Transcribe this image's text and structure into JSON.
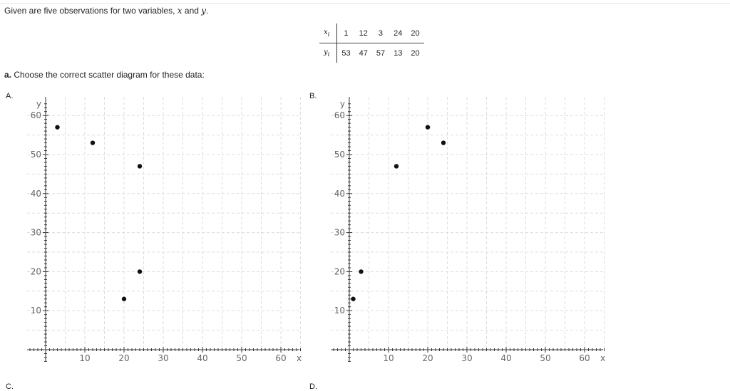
{
  "intro": {
    "prefix": "Given are five observations for two variables, ",
    "var_x": "x",
    "connector": " and ",
    "var_y": "y",
    "suffix": "."
  },
  "table": {
    "x_label": "x",
    "x_sub": "i",
    "y_label": "y",
    "y_sub": "i",
    "x_values": [
      "1",
      "12",
      "3",
      "24",
      "20"
    ],
    "y_values": [
      "53",
      "47",
      "57",
      "13",
      "20"
    ]
  },
  "question": {
    "prefix": "a.",
    "text": " Choose the correct scatter diagram for these data:"
  },
  "chart_data": [
    {
      "type": "scatter",
      "label": "A.",
      "xlabel": "x",
      "ylabel": "y",
      "xlim": [
        0,
        66
      ],
      "ylim": [
        0,
        63
      ],
      "xticks": [
        10,
        20,
        30,
        40,
        50,
        60
      ],
      "yticks": [
        10,
        20,
        30,
        40,
        50,
        60
      ],
      "grid": true,
      "points": [
        {
          "x": 3,
          "y": 57
        },
        {
          "x": 12,
          "y": 53
        },
        {
          "x": 24,
          "y": 47
        },
        {
          "x": 24,
          "y": 20
        },
        {
          "x": 20,
          "y": 13
        }
      ]
    },
    {
      "type": "scatter",
      "label": "B.",
      "xlabel": "x",
      "ylabel": "y",
      "xlim": [
        0,
        66
      ],
      "ylim": [
        0,
        63
      ],
      "xticks": [
        10,
        20,
        30,
        40,
        50,
        60
      ],
      "yticks": [
        10,
        20,
        30,
        40,
        50,
        60
      ],
      "grid": true,
      "points": [
        {
          "x": 20,
          "y": 57
        },
        {
          "x": 24,
          "y": 53
        },
        {
          "x": 12,
          "y": 47
        },
        {
          "x": 3,
          "y": 20
        },
        {
          "x": 1,
          "y": 13
        }
      ]
    }
  ],
  "next_options": [
    "C.",
    "D."
  ]
}
